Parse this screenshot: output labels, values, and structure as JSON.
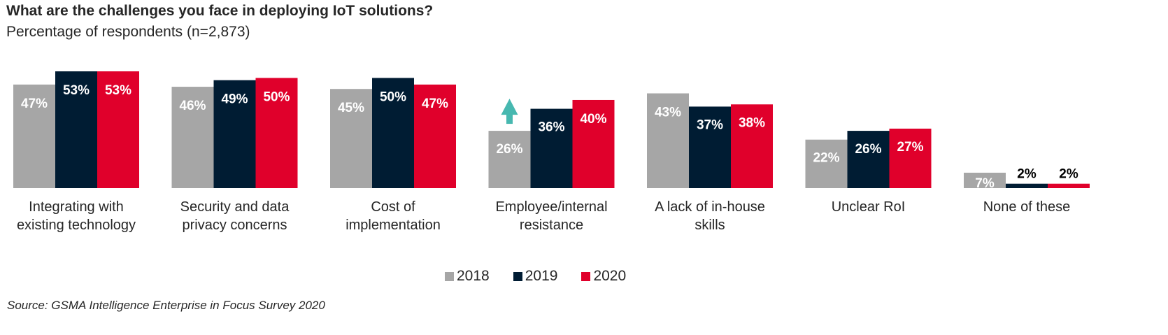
{
  "chart_data": {
    "type": "bar",
    "title": "What are the challenges you face in deploying IoT solutions?",
    "subtitle": "Percentage of respondents (n=2,873)",
    "xlabel": "",
    "ylabel": "",
    "ylim": [
      0,
      53
    ],
    "grid": false,
    "legend_position": "bottom-center",
    "categories": [
      [
        "Integrating with",
        "existing technology"
      ],
      [
        "Security and data",
        "privacy concerns"
      ],
      [
        "Cost of",
        "implementation"
      ],
      [
        "Employee/internal",
        "resistance"
      ],
      [
        "A lack of in-house",
        "skills"
      ],
      [
        "Unclear RoI"
      ],
      [
        "None of these"
      ]
    ],
    "series": [
      {
        "name": "2018",
        "color": "#a6a6a6",
        "values": [
          47,
          46,
          45,
          26,
          43,
          22,
          7
        ],
        "labels": [
          "47%",
          "46%",
          "45%",
          "26%",
          "43%",
          "22%",
          "7%"
        ]
      },
      {
        "name": "2019",
        "color": "#001c33",
        "values": [
          53,
          49,
          50,
          36,
          37,
          26,
          2
        ],
        "labels": [
          "53%",
          "49%",
          "50%",
          "36%",
          "37%",
          "26%",
          "2%"
        ]
      },
      {
        "name": "2020",
        "color": "#e0002b",
        "values": [
          53,
          50,
          47,
          40,
          38,
          27,
          2
        ],
        "labels": [
          "53%",
          "50%",
          "47%",
          "40%",
          "38%",
          "27%",
          "2%"
        ]
      }
    ],
    "annotations": [
      {
        "type": "arrow-up-icon",
        "category_index": 3,
        "series_index": 0,
        "color": "#47b8b0"
      }
    ]
  },
  "legend": [
    {
      "label": "2018",
      "color": "#a6a6a6"
    },
    {
      "label": "2019",
      "color": "#001c33"
    },
    {
      "label": "2020",
      "color": "#e0002b"
    }
  ],
  "source": "Source: GSMA Intelligence Enterprise in Focus Survey 2020"
}
